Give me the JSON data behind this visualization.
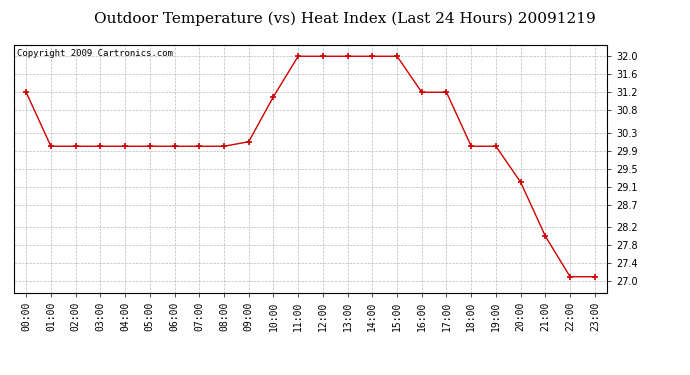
{
  "title": "Outdoor Temperature (vs) Heat Index (Last 24 Hours) 20091219",
  "copyright": "Copyright 2009 Cartronics.com",
  "x_labels": [
    "00:00",
    "01:00",
    "02:00",
    "03:00",
    "04:00",
    "05:00",
    "06:00",
    "07:00",
    "08:00",
    "09:00",
    "10:00",
    "11:00",
    "12:00",
    "13:00",
    "14:00",
    "15:00",
    "16:00",
    "17:00",
    "18:00",
    "19:00",
    "20:00",
    "21:00",
    "22:00",
    "23:00"
  ],
  "y_values": [
    31.2,
    30.0,
    30.0,
    30.0,
    30.0,
    30.0,
    30.0,
    30.0,
    30.0,
    30.1,
    31.1,
    32.0,
    32.0,
    32.0,
    32.0,
    32.0,
    31.2,
    31.2,
    30.0,
    30.0,
    29.2,
    28.0,
    27.1,
    27.1
  ],
  "line_color": "#cc0000",
  "marker": "+",
  "marker_size": 5,
  "marker_edge_width": 1.2,
  "line_width": 1.0,
  "ylim_min": 26.75,
  "ylim_max": 32.25,
  "yticks": [
    27.0,
    27.4,
    27.8,
    28.2,
    28.7,
    29.1,
    29.5,
    29.9,
    30.3,
    30.8,
    31.2,
    31.6,
    32.0
  ],
  "background_color": "#ffffff",
  "plot_bg_color": "#ffffff",
  "grid_color": "#bbbbbb",
  "title_fontsize": 11,
  "tick_fontsize": 7,
  "copyright_fontsize": 6.5
}
